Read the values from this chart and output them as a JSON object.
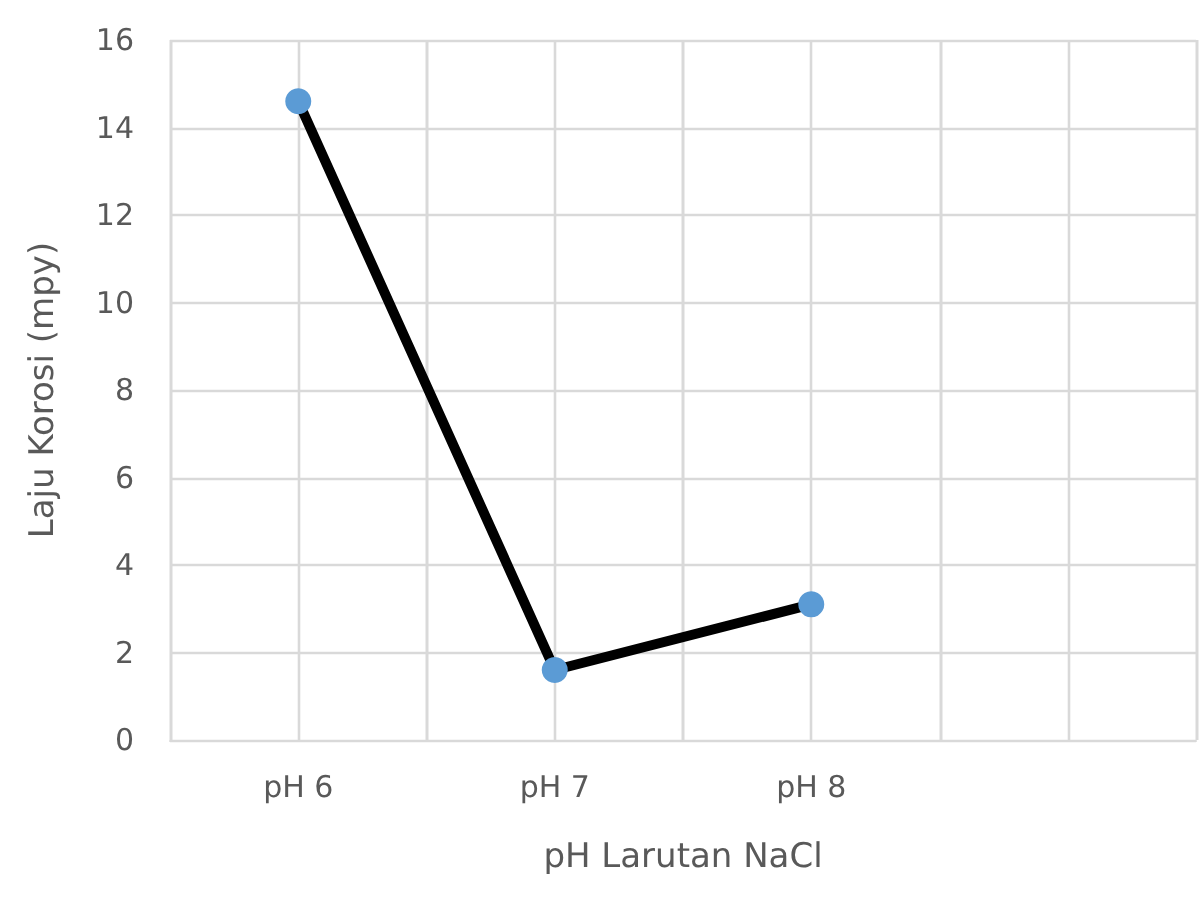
{
  "chart_data": {
    "type": "line",
    "xlabel": "pH Larutan NaCl",
    "ylabel": "Laju Korosi (mpy)",
    "categories": [
      "pH 6",
      "pH 7",
      "pH 8",
      null
    ],
    "series": [
      {
        "color": "#000000",
        "values": [
          14.6,
          1.6,
          3.1,
          null
        ]
      }
    ],
    "marker": "circle",
    "line_style": "solid",
    "grid": true,
    "ylim": [
      0,
      16
    ],
    "yticks": [
      0,
      2,
      4,
      6,
      8,
      10,
      12,
      14,
      16
    ]
  }
}
